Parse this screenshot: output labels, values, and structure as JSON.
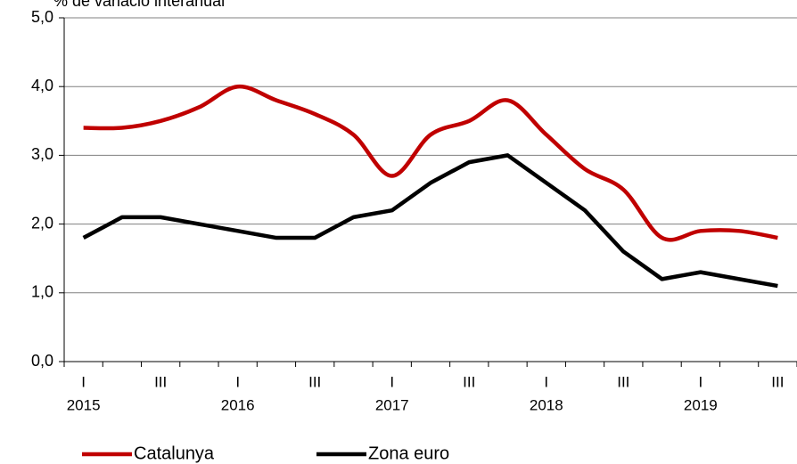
{
  "chart_data": {
    "type": "line",
    "title": "% de variació interanual",
    "categories": [
      "I",
      null,
      "III",
      null,
      "I",
      null,
      "III",
      null,
      "I",
      null,
      "III",
      null,
      "I",
      null,
      "III",
      null,
      "I",
      null,
      "III"
    ],
    "years": [
      "2015",
      null,
      null,
      null,
      "2016",
      null,
      null,
      null,
      "2017",
      null,
      null,
      null,
      "2018",
      null,
      null,
      null,
      "2019",
      null,
      null
    ],
    "series": [
      {
        "name": "Catalunya",
        "color": "#c00000",
        "smooth": true,
        "values": [
          3.4,
          3.4,
          3.5,
          3.7,
          4.0,
          3.8,
          3.6,
          3.3,
          2.7,
          3.3,
          3.5,
          3.8,
          3.3,
          2.8,
          2.5,
          1.8,
          1.9,
          1.9,
          1.8
        ]
      },
      {
        "name": "Zona euro",
        "color": "#000000",
        "smooth": false,
        "values": [
          1.8,
          2.1,
          2.1,
          2.0,
          1.9,
          1.8,
          1.8,
          2.1,
          2.2,
          2.6,
          2.9,
          3.0,
          2.6,
          2.2,
          1.6,
          1.2,
          1.3,
          1.2,
          1.1
        ]
      }
    ],
    "ylim": [
      0,
      5
    ],
    "yticks": [
      {
        "value": 0,
        "label": "0,0"
      },
      {
        "value": 1,
        "label": "1,0"
      },
      {
        "value": 2,
        "label": "2,0"
      },
      {
        "value": 3,
        "label": "3,0"
      },
      {
        "value": 4,
        "label": "4,0"
      },
      {
        "value": 5,
        "label": "5,0"
      }
    ],
    "grid": true,
    "legend": "bottom"
  }
}
